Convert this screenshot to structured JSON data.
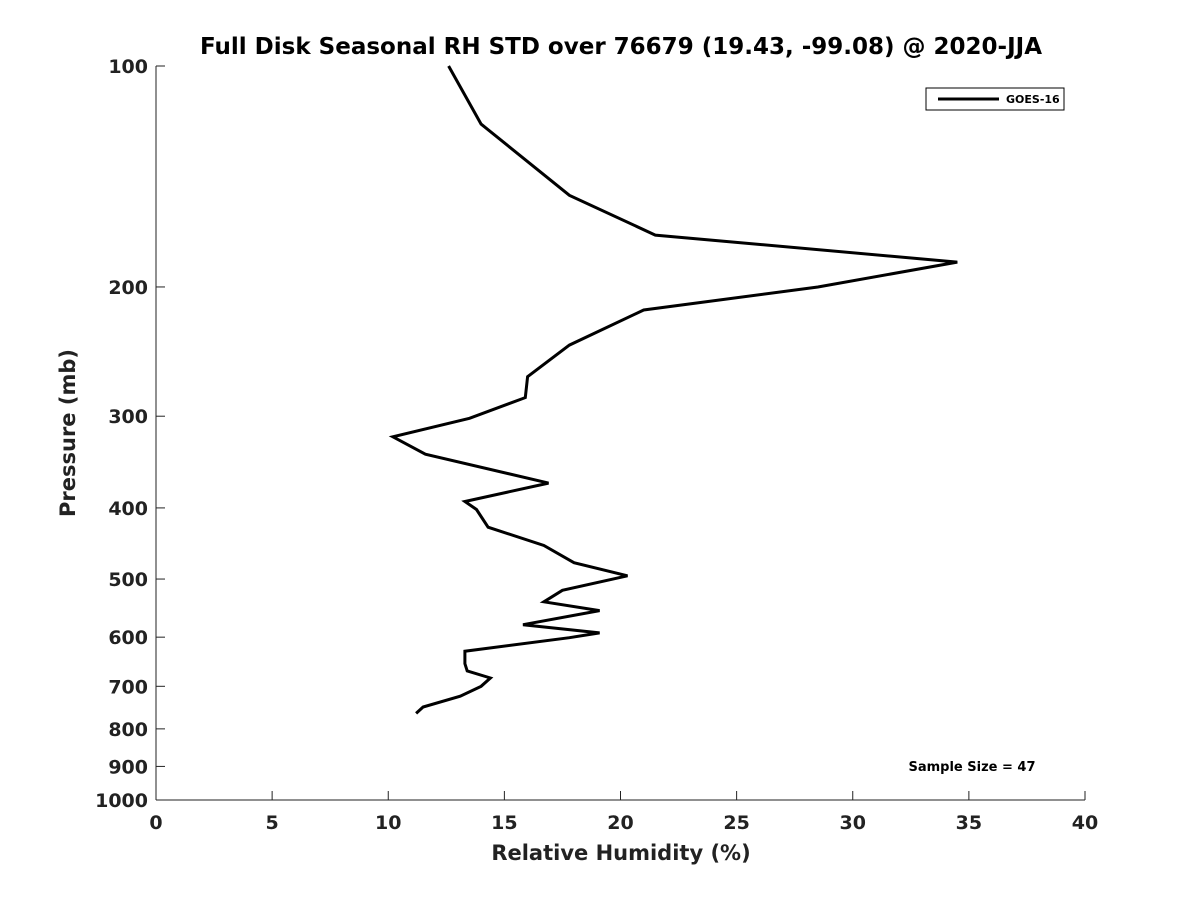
{
  "chart_data": {
    "type": "line",
    "title": "Full Disk Seasonal RH STD over 76679 (19.43, -99.08) @ 2020-JJA",
    "xlabel": "Relative Humidity (%)",
    "ylabel": "Pressure (mb)",
    "xlim": [
      0,
      40
    ],
    "ylim": [
      100,
      1000
    ],
    "y_scale": "log",
    "y_reversed": true,
    "x_ticks": [
      0,
      5,
      10,
      15,
      20,
      25,
      30,
      35,
      40
    ],
    "x_tick_labels": [
      "0",
      "5",
      "10",
      "15",
      "20",
      "25",
      "30",
      "35",
      "40"
    ],
    "y_ticks": [
      100,
      200,
      300,
      400,
      500,
      600,
      700,
      800,
      900,
      1000
    ],
    "y_tick_labels": [
      "100",
      "200",
      "300",
      "400",
      "500",
      "600",
      "700",
      "800",
      "900",
      "1000"
    ],
    "grid": false,
    "legend_position": "top-right",
    "annotation": "Sample Size = 47",
    "series": [
      {
        "name": "GOES-16",
        "color": "#000000",
        "x": [
          12.6,
          14.0,
          17.8,
          21.5,
          34.5,
          28.5,
          21.0,
          17.8,
          16.0,
          15.9,
          13.5,
          10.2,
          11.6,
          16.9,
          13.3,
          13.8,
          14.3,
          16.7,
          18.0,
          20.3,
          17.5,
          16.7,
          19.1,
          15.8,
          19.1,
          17.8,
          13.3,
          13.3,
          13.4,
          14.4,
          14.0,
          13.1,
          11.5,
          11.2
        ],
        "y": [
          100,
          120,
          150,
          170,
          185,
          200,
          215,
          240,
          265,
          283,
          302,
          320,
          338,
          370,
          392,
          402,
          425,
          450,
          475,
          495,
          518,
          537,
          552,
          577,
          592,
          601,
          627,
          652,
          667,
          682,
          700,
          722,
          747,
          762
        ]
      }
    ]
  }
}
